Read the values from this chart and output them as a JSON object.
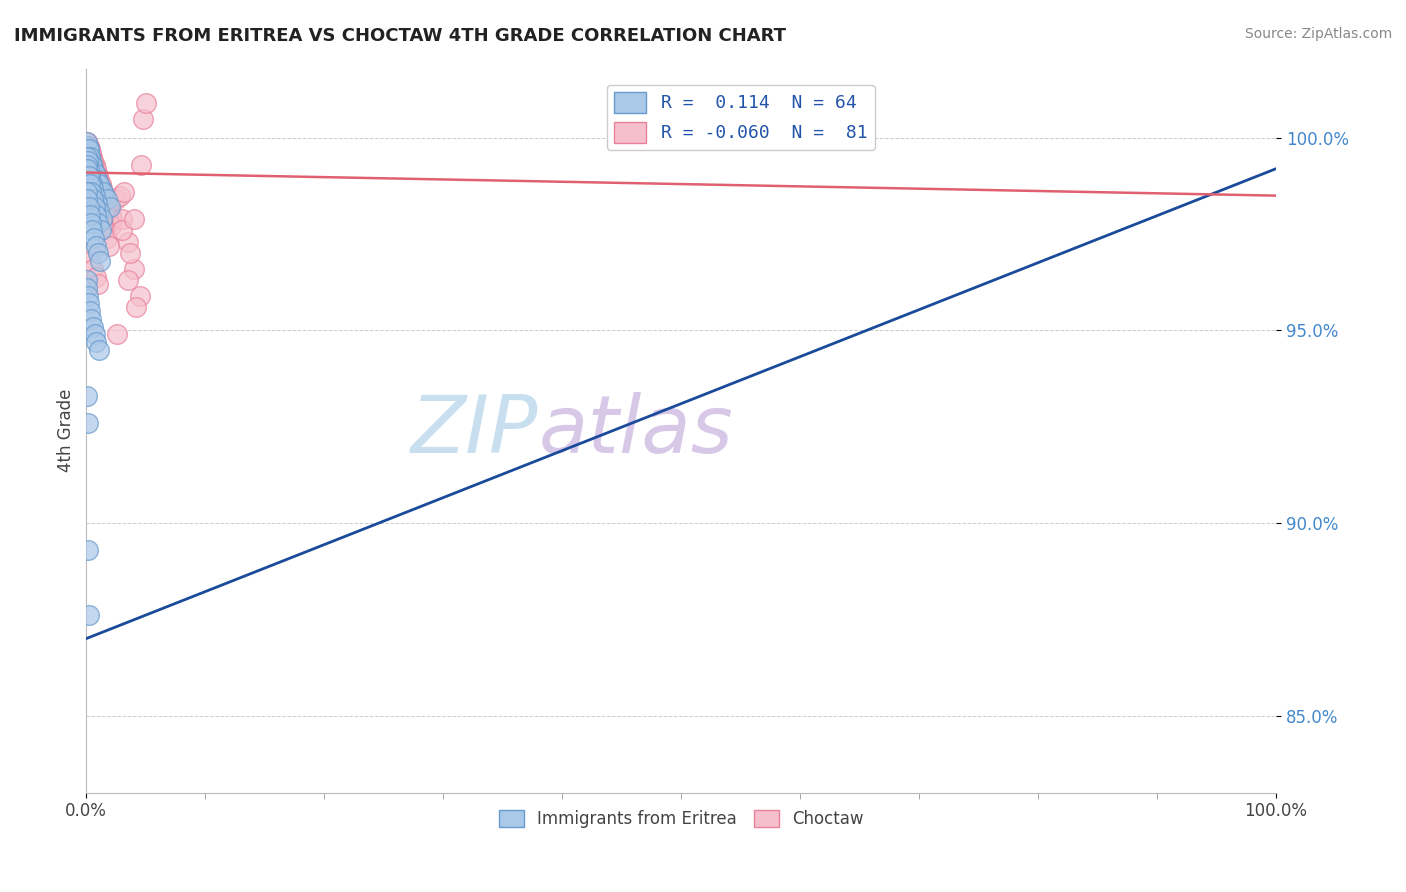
{
  "title": "IMMIGRANTS FROM ERITREA VS CHOCTAW 4TH GRADE CORRELATION CHART",
  "source_text": "Source: ZipAtlas.com",
  "ylabel": "4th Grade",
  "xlim": [
    0,
    100
  ],
  "ylim": [
    83.0,
    101.8
  ],
  "yticks": [
    85.0,
    90.0,
    95.0,
    100.0
  ],
  "ytick_labels": [
    "85.0%",
    "90.0%",
    "95.0%",
    "100.0%"
  ],
  "xtick_labels": [
    "0.0%",
    "100.0%"
  ],
  "legend_entries": [
    {
      "label": "R =  0.114  N = 64"
    },
    {
      "label": "R = -0.060  N =  81"
    }
  ],
  "blue_scatter_x": [
    0.1,
    0.2,
    0.3,
    0.4,
    0.5,
    0.6,
    0.8,
    1.0,
    1.2,
    1.5,
    0.1,
    0.2,
    0.3,
    0.5,
    0.7,
    0.9,
    1.1,
    1.4,
    1.7,
    2.0,
    0.1,
    0.15,
    0.25,
    0.35,
    0.45,
    0.6,
    0.75,
    0.9,
    1.1,
    1.3,
    0.05,
    0.1,
    0.2,
    0.3,
    0.4,
    0.55,
    0.7,
    0.85,
    1.0,
    1.2,
    0.05,
    0.1,
    0.2,
    0.3,
    0.4,
    0.5,
    0.65,
    0.8,
    0.95,
    1.15,
    0.05,
    0.1,
    0.15,
    0.2,
    0.3,
    0.4,
    0.55,
    0.7,
    0.85,
    1.05,
    0.08,
    0.12,
    0.18,
    0.25
  ],
  "blue_scatter_y": [
    99.8,
    99.7,
    99.5,
    99.4,
    99.3,
    99.2,
    99.0,
    98.8,
    98.7,
    98.5,
    99.9,
    99.7,
    99.5,
    99.3,
    99.1,
    98.9,
    98.8,
    98.6,
    98.4,
    98.2,
    99.5,
    99.4,
    99.2,
    99.0,
    98.8,
    98.7,
    98.5,
    98.3,
    98.1,
    97.9,
    99.3,
    99.2,
    99.0,
    98.8,
    98.6,
    98.4,
    98.2,
    98.0,
    97.8,
    97.6,
    98.6,
    98.4,
    98.2,
    98.0,
    97.8,
    97.6,
    97.4,
    97.2,
    97.0,
    96.8,
    96.3,
    96.1,
    95.9,
    95.7,
    95.5,
    95.3,
    95.1,
    94.9,
    94.7,
    94.5,
    93.3,
    92.6,
    89.3,
    87.6
  ],
  "pink_scatter_x": [
    0.1,
    0.3,
    0.5,
    0.7,
    0.9,
    1.1,
    1.3,
    1.5,
    1.7,
    1.9,
    0.2,
    0.4,
    0.6,
    0.8,
    1.0,
    1.2,
    1.4,
    1.6,
    1.8,
    2.1,
    0.15,
    0.35,
    0.55,
    0.75,
    0.95,
    1.15,
    1.35,
    1.55,
    1.75,
    2.2,
    0.1,
    0.3,
    0.5,
    0.7,
    0.9,
    1.1,
    1.3,
    1.5,
    1.7,
    1.95,
    0.2,
    0.4,
    0.6,
    0.8,
    1.0,
    1.2,
    1.4,
    1.6,
    1.85,
    2.1,
    0.1,
    0.3,
    0.5,
    0.7,
    0.9,
    1.1,
    1.3,
    1.5,
    1.7,
    1.9,
    0.2,
    0.4,
    0.6,
    0.8,
    1.0,
    2.5,
    3.0,
    3.5,
    4.0,
    4.5,
    2.8,
    3.2,
    3.7,
    4.2,
    4.8,
    3.0,
    3.5,
    4.0,
    4.6,
    5.0,
    2.6
  ],
  "pink_scatter_y": [
    99.9,
    99.7,
    99.5,
    99.3,
    99.1,
    98.9,
    98.7,
    98.5,
    98.3,
    98.1,
    99.8,
    99.6,
    99.4,
    99.2,
    99.0,
    98.8,
    98.6,
    98.4,
    98.2,
    98.0,
    99.7,
    99.5,
    99.3,
    99.1,
    98.9,
    98.7,
    98.5,
    98.3,
    98.1,
    97.9,
    99.6,
    99.4,
    99.2,
    99.0,
    98.8,
    98.6,
    98.4,
    98.2,
    98.0,
    97.8,
    99.5,
    99.3,
    99.1,
    98.9,
    98.7,
    98.5,
    98.3,
    98.1,
    97.9,
    97.7,
    99.0,
    98.8,
    98.6,
    98.4,
    98.2,
    98.0,
    97.8,
    97.6,
    97.4,
    97.2,
    97.0,
    96.8,
    96.6,
    96.4,
    96.2,
    98.4,
    97.9,
    97.3,
    96.6,
    95.9,
    98.5,
    98.6,
    97.0,
    95.6,
    100.5,
    97.6,
    96.3,
    97.9,
    99.3,
    100.9,
    94.9
  ],
  "blue_line_x0": 0,
  "blue_line_x1": 100,
  "blue_line_y0": 87.0,
  "blue_line_y1": 99.2,
  "pink_line_x0": 0,
  "pink_line_x1": 100,
  "pink_line_y0": 99.1,
  "pink_line_y1": 98.5,
  "blue_dot_fill": "#aac8e8",
  "blue_dot_edge": "#6699cc",
  "pink_dot_fill": "#f5c0cc",
  "pink_dot_edge": "#e8809a",
  "blue_line_color": "#1a4a9a",
  "pink_line_color": "#e06070",
  "legend_blue_fill": "#aac8e8",
  "legend_blue_edge": "#6699cc",
  "legend_pink_fill": "#f5c0cc",
  "legend_pink_edge": "#e8809a",
  "background_color": "#ffffff",
  "grid_color": "#cccccc",
  "title_color": "#222222",
  "axis_label_color": "#444444",
  "ytick_color": "#4488cc",
  "xtick_color": "#444444",
  "watermark_zip_color": "#c8dff0",
  "watermark_atlas_color": "#d8c8e8",
  "source_color": "#888888"
}
